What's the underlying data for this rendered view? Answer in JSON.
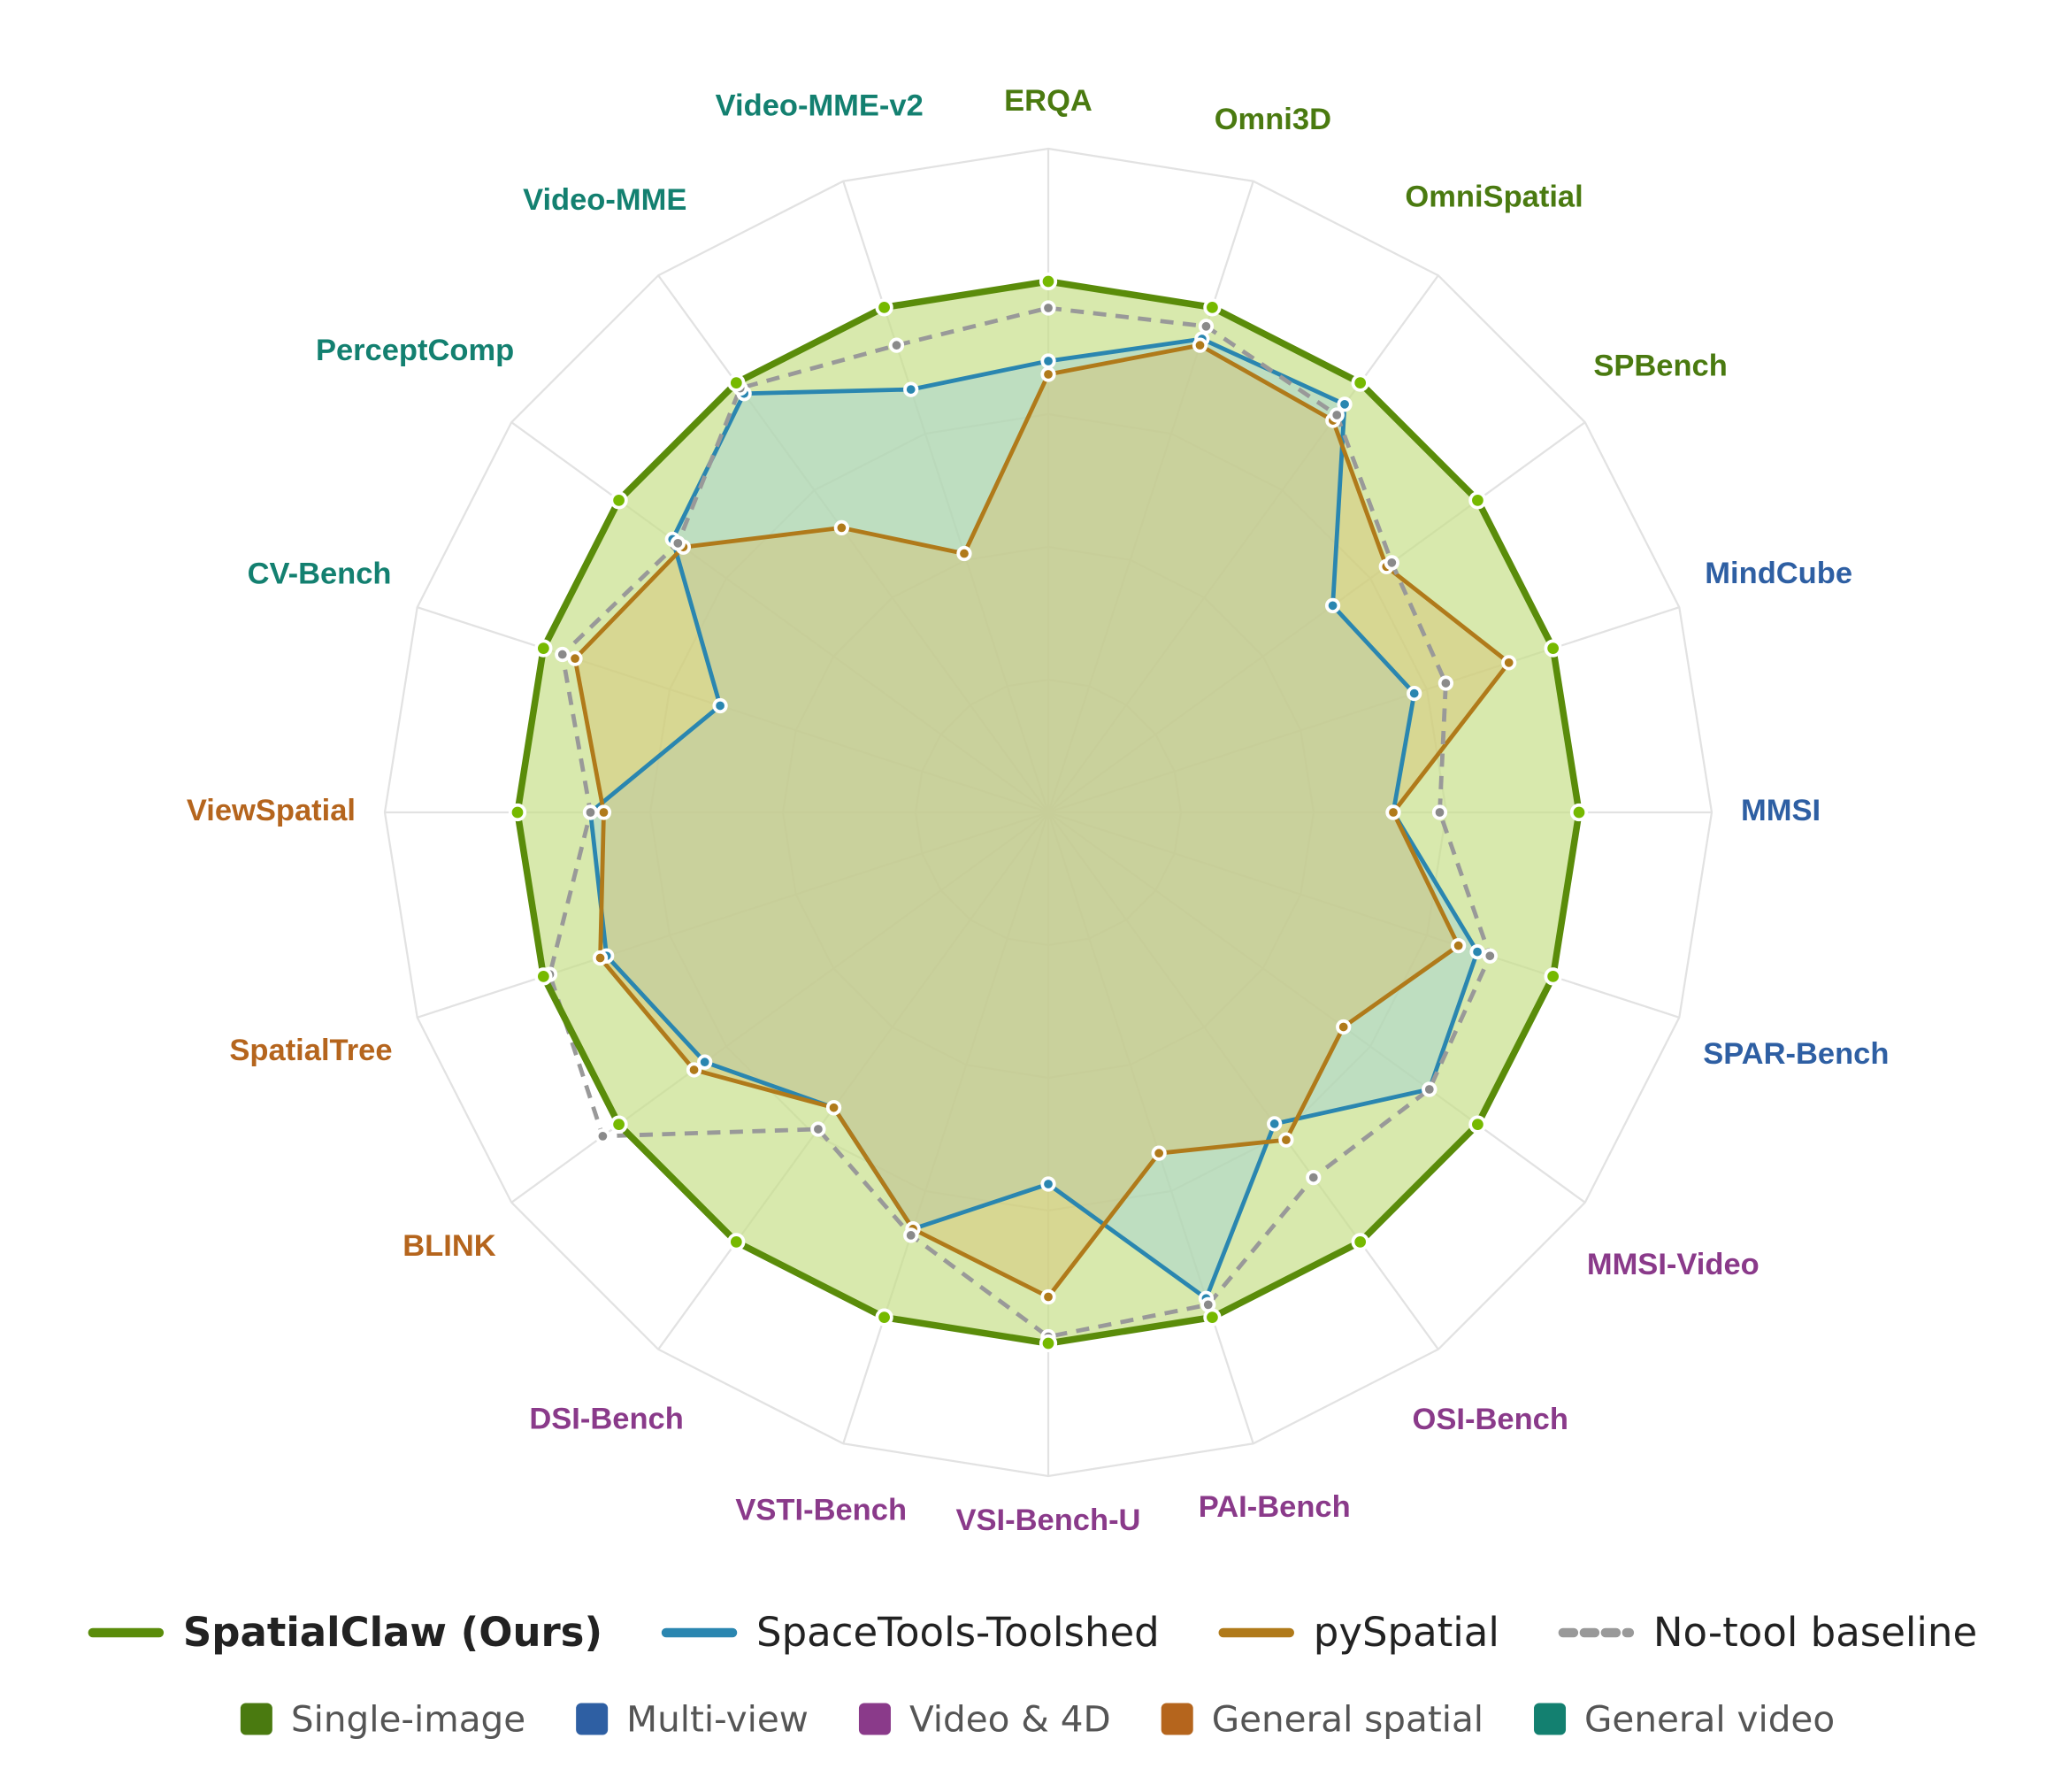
{
  "chart_data": {
    "type": "radar",
    "categories": [
      "ERQA",
      "Omni3D",
      "OmniSpatial",
      "SPBench",
      "MindCube",
      "MMSI",
      "SPAR-Bench",
      "MMSI-Video",
      "OSI-Bench",
      "PAI-Bench",
      "VSI-Bench-U",
      "VSTI-Bench",
      "DSI-Bench",
      "BLINK",
      "SpatialTree",
      "ViewSpatial",
      "CV-Bench",
      "PerceptComp",
      "Video-MME",
      "Video-MME-v2"
    ],
    "category_colors": [
      "#4a7a10",
      "#4a7a10",
      "#4a7a10",
      "#4a7a10",
      "#2e5fa3",
      "#2e5fa3",
      "#2e5fa3",
      "#8a3a8a",
      "#8a3a8a",
      "#8a3a8a",
      "#8a3a8a",
      "#8a3a8a",
      "#8a3a8a",
      "#b5651d",
      "#b5651d",
      "#b5651d",
      "#138070",
      "#138070",
      "#138070",
      "#138070"
    ],
    "rlim": [
      0,
      100
    ],
    "rticks": [
      20,
      40,
      60,
      80,
      100
    ],
    "series": [
      {
        "name": "SpatialClaw (Ours)",
        "color": "#5a8c0a",
        "point_color": "#76b900",
        "fill": "#c8e08a",
        "values": [
          80,
          80,
          80,
          80,
          80,
          80,
          80,
          80,
          80,
          80,
          80,
          80,
          80,
          80,
          80,
          80,
          80,
          80,
          80,
          80
        ]
      },
      {
        "name": "SpaceTools-Toolshed",
        "color": "#2a86b0",
        "point_color": "#2a86b0",
        "fill": "#9fd0d8",
        "values": [
          68,
          75,
          76,
          53,
          58,
          52,
          68,
          71,
          58,
          77,
          56,
          66,
          55,
          64,
          70,
          69,
          52,
          70,
          78,
          67
        ]
      },
      {
        "name": "pySpatial",
        "color": "#b07a1a",
        "point_color": "#b07a1a",
        "fill": "#d8c070",
        "values": [
          66,
          74,
          73,
          63,
          73,
          52,
          65,
          55,
          61,
          54,
          73,
          66,
          55,
          66,
          71,
          67,
          75,
          68,
          53,
          41
        ]
      },
      {
        "name": "No-tool baseline",
        "color": "#999999",
        "point_color": "#8a8a8a",
        "dashed": true,
        "values": [
          76,
          77,
          74,
          64,
          63,
          59,
          70,
          71,
          68,
          78,
          79,
          67,
          59,
          83,
          79,
          69,
          77,
          69,
          79,
          74
        ]
      }
    ],
    "groups": [
      {
        "name": "Single-image",
        "color": "#4a7a10"
      },
      {
        "name": "Multi-view",
        "color": "#2e5fa3"
      },
      {
        "name": "Video & 4D",
        "color": "#8a3a8a"
      },
      {
        "name": "General spatial",
        "color": "#b5651d"
      },
      {
        "name": "General video",
        "color": "#138070"
      }
    ]
  }
}
